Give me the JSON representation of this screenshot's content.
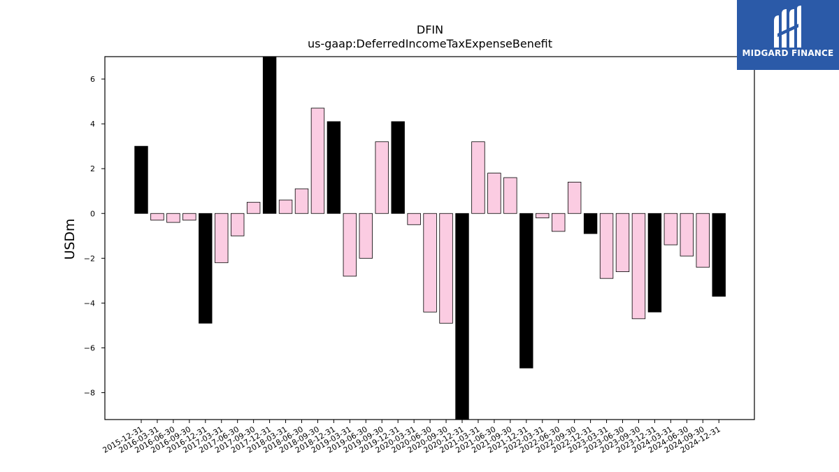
{
  "logo": {
    "text": "MIDGARD FINANCE"
  },
  "colors": {
    "highlight": "#000000",
    "normal": "#fbcce2",
    "edge": "#000000"
  },
  "chart_data": {
    "type": "bar",
    "title": "DFIN",
    "subtitle": "us-gaap:DeferredIncomeTaxExpenseBenefit",
    "ylabel": "USDm",
    "xlabel": "",
    "ylim": [
      -9.2,
      7.0
    ],
    "yticks": [
      -8,
      -6,
      -4,
      -2,
      0,
      2,
      4,
      6
    ],
    "ytick_labels": [
      "−8",
      "−6",
      "−4",
      "−2",
      "0",
      "2",
      "4",
      "6"
    ],
    "grid": false,
    "categories": [
      "2015-12-31",
      "2016-03-31",
      "2016-06-30",
      "2016-09-30",
      "2016-12-31",
      "2017-03-31",
      "2017-06-30",
      "2017-09-30",
      "2017-12-31",
      "2018-03-31",
      "2018-06-30",
      "2018-09-30",
      "2018-12-31",
      "2019-03-31",
      "2019-06-30",
      "2019-09-30",
      "2019-12-31",
      "2020-03-31",
      "2020-06-30",
      "2020-09-30",
      "2020-12-31",
      "2021-03-31",
      "2021-06-30",
      "2021-09-30",
      "2021-12-31",
      "2022-03-31",
      "2022-06-30",
      "2022-09-30",
      "2022-12-31",
      "2023-03-31",
      "2023-06-30",
      "2023-09-30",
      "2023-12-31",
      "2024-03-31",
      "2024-06-30",
      "2024-09-30",
      "2024-12-31"
    ],
    "values": [
      3.0,
      -0.3,
      -0.4,
      -0.3,
      -4.9,
      -2.2,
      -1.0,
      0.5,
      7.0,
      0.6,
      1.1,
      4.7,
      4.1,
      -2.8,
      -2.0,
      3.2,
      4.1,
      -0.5,
      -4.4,
      -4.9,
      -9.2,
      3.2,
      1.8,
      1.6,
      -6.9,
      -0.2,
      -0.8,
      1.4,
      -0.9,
      -2.9,
      -2.6,
      -4.7,
      -4.4,
      -1.4,
      -1.9,
      -2.4,
      -3.7
    ],
    "highlight": [
      true,
      false,
      false,
      false,
      true,
      false,
      false,
      false,
      true,
      false,
      false,
      false,
      true,
      false,
      false,
      false,
      true,
      false,
      false,
      false,
      true,
      false,
      false,
      false,
      true,
      false,
      false,
      false,
      true,
      false,
      false,
      false,
      true,
      false,
      false,
      false,
      true
    ]
  }
}
